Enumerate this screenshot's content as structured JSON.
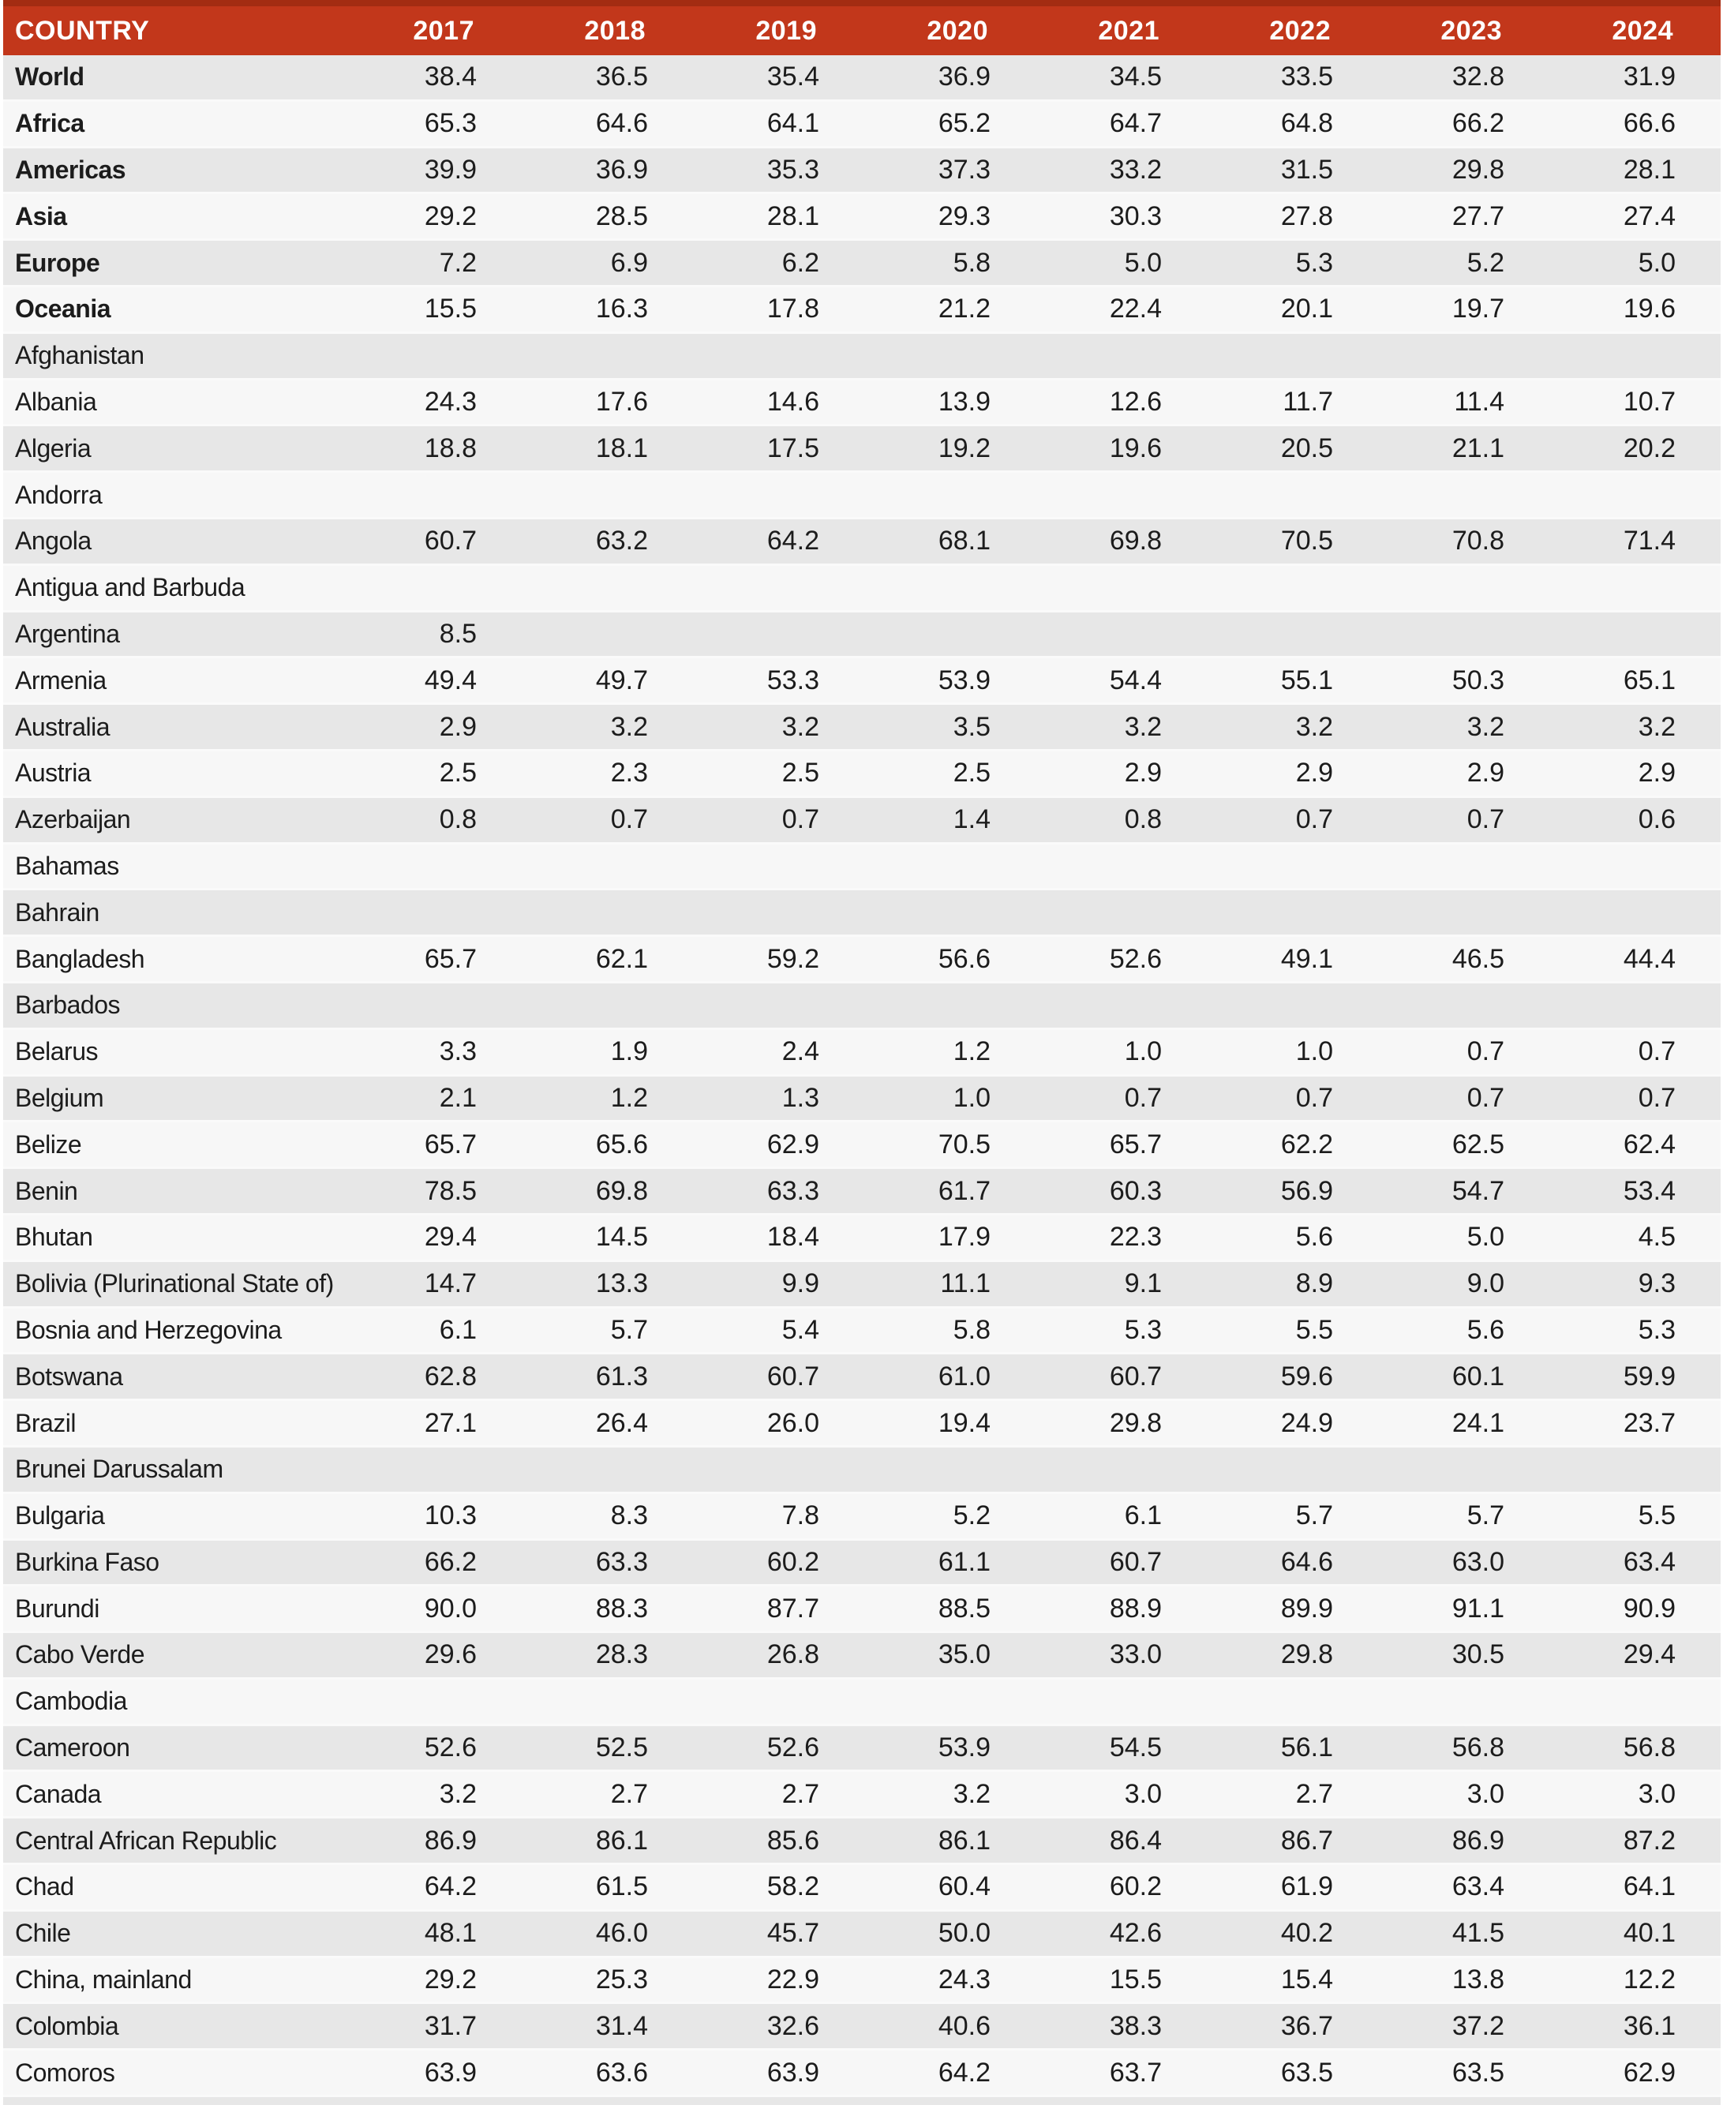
{
  "colors": {
    "header_bg": "#c2371b",
    "header_top": "#a32c12",
    "header_text": "#ffffff",
    "row_odd": "#e7e7e7",
    "row_even": "#f7f7f7",
    "row_separator": "#fafafa",
    "text": "#1c1c1c",
    "page_bg": "#ffffff"
  },
  "chart_data": {
    "type": "table",
    "title": "",
    "legend": [],
    "columns": [
      "COUNTRY",
      "2017",
      "2018",
      "2019",
      "2020",
      "2021",
      "2022",
      "2023",
      "2024"
    ],
    "rows": [
      {
        "label": "World",
        "bold": true,
        "values": [
          "38.4",
          "36.5",
          "35.4",
          "36.9",
          "34.5",
          "33.5",
          "32.8",
          "31.9"
        ]
      },
      {
        "label": "Africa",
        "bold": true,
        "values": [
          "65.3",
          "64.6",
          "64.1",
          "65.2",
          "64.7",
          "64.8",
          "66.2",
          "66.6"
        ]
      },
      {
        "label": "Americas",
        "bold": true,
        "values": [
          "39.9",
          "36.9",
          "35.3",
          "37.3",
          "33.2",
          "31.5",
          "29.8",
          "28.1"
        ]
      },
      {
        "label": "Asia",
        "bold": true,
        "values": [
          "29.2",
          "28.5",
          "28.1",
          "29.3",
          "30.3",
          "27.8",
          "27.7",
          "27.4"
        ]
      },
      {
        "label": "Europe",
        "bold": true,
        "values": [
          "7.2",
          "6.9",
          "6.2",
          "5.8",
          "5.0",
          "5.3",
          "5.2",
          "5.0"
        ]
      },
      {
        "label": "Oceania",
        "bold": true,
        "values": [
          "15.5",
          "16.3",
          "17.8",
          "21.2",
          "22.4",
          "20.1",
          "19.7",
          "19.6"
        ]
      },
      {
        "label": "Afghanistan",
        "bold": false,
        "values": [
          "",
          "",
          "",
          "",
          "",
          "",
          "",
          ""
        ]
      },
      {
        "label": "Albania",
        "bold": false,
        "values": [
          "24.3",
          "17.6",
          "14.6",
          "13.9",
          "12.6",
          "11.7",
          "11.4",
          "10.7"
        ]
      },
      {
        "label": "Algeria",
        "bold": false,
        "values": [
          "18.8",
          "18.1",
          "17.5",
          "19.2",
          "19.6",
          "20.5",
          "21.1",
          "20.2"
        ]
      },
      {
        "label": "Andorra",
        "bold": false,
        "values": [
          "",
          "",
          "",
          "",
          "",
          "",
          "",
          ""
        ]
      },
      {
        "label": "Angola",
        "bold": false,
        "values": [
          "60.7",
          "63.2",
          "64.2",
          "68.1",
          "69.8",
          "70.5",
          "70.8",
          "71.4"
        ]
      },
      {
        "label": "Antigua and Barbuda",
        "bold": false,
        "values": [
          "",
          "",
          "",
          "",
          "",
          "",
          "",
          ""
        ]
      },
      {
        "label": "Argentina",
        "bold": false,
        "values": [
          "8.5",
          "",
          "",
          "",
          "",
          "",
          "",
          ""
        ]
      },
      {
        "label": "Armenia",
        "bold": false,
        "values": [
          "49.4",
          "49.7",
          "53.3",
          "53.9",
          "54.4",
          "55.1",
          "50.3",
          "65.1"
        ]
      },
      {
        "label": "Australia",
        "bold": false,
        "values": [
          "2.9",
          "3.2",
          "3.2",
          "3.5",
          "3.2",
          "3.2",
          "3.2",
          "3.2"
        ]
      },
      {
        "label": "Austria",
        "bold": false,
        "values": [
          "2.5",
          "2.3",
          "2.5",
          "2.5",
          "2.9",
          "2.9",
          "2.9",
          "2.9"
        ]
      },
      {
        "label": "Azerbaijan",
        "bold": false,
        "values": [
          "0.8",
          "0.7",
          "0.7",
          "1.4",
          "0.8",
          "0.7",
          "0.7",
          "0.6"
        ]
      },
      {
        "label": "Bahamas",
        "bold": false,
        "values": [
          "",
          "",
          "",
          "",
          "",
          "",
          "",
          ""
        ]
      },
      {
        "label": "Bahrain",
        "bold": false,
        "values": [
          "",
          "",
          "",
          "",
          "",
          "",
          "",
          ""
        ]
      },
      {
        "label": "Bangladesh",
        "bold": false,
        "values": [
          "65.7",
          "62.1",
          "59.2",
          "56.6",
          "52.6",
          "49.1",
          "46.5",
          "44.4"
        ]
      },
      {
        "label": "Barbados",
        "bold": false,
        "values": [
          "",
          "",
          "",
          "",
          "",
          "",
          "",
          ""
        ]
      },
      {
        "label": "Belarus",
        "bold": false,
        "values": [
          "3.3",
          "1.9",
          "2.4",
          "1.2",
          "1.0",
          "1.0",
          "0.7",
          "0.7"
        ]
      },
      {
        "label": "Belgium",
        "bold": false,
        "values": [
          "2.1",
          "1.2",
          "1.3",
          "1.0",
          "0.7",
          "0.7",
          "0.7",
          "0.7"
        ]
      },
      {
        "label": "Belize",
        "bold": false,
        "values": [
          "65.7",
          "65.6",
          "62.9",
          "70.5",
          "65.7",
          "62.2",
          "62.5",
          "62.4"
        ]
      },
      {
        "label": "Benin",
        "bold": false,
        "values": [
          "78.5",
          "69.8",
          "63.3",
          "61.7",
          "60.3",
          "56.9",
          "54.7",
          "53.4"
        ]
      },
      {
        "label": "Bhutan",
        "bold": false,
        "values": [
          "29.4",
          "14.5",
          "18.4",
          "17.9",
          "22.3",
          "5.6",
          "5.0",
          "4.5"
        ]
      },
      {
        "label": "Bolivia (Plurinational State of)",
        "bold": false,
        "values": [
          "14.7",
          "13.3",
          "9.9",
          "11.1",
          "9.1",
          "8.9",
          "9.0",
          "9.3"
        ]
      },
      {
        "label": "Bosnia and Herzegovina",
        "bold": false,
        "values": [
          "6.1",
          "5.7",
          "5.4",
          "5.8",
          "5.3",
          "5.5",
          "5.6",
          "5.3"
        ]
      },
      {
        "label": "Botswana",
        "bold": false,
        "values": [
          "62.8",
          "61.3",
          "60.7",
          "61.0",
          "60.7",
          "59.6",
          "60.1",
          "59.9"
        ]
      },
      {
        "label": "Brazil",
        "bold": false,
        "values": [
          "27.1",
          "26.4",
          "26.0",
          "19.4",
          "29.8",
          "24.9",
          "24.1",
          "23.7"
        ]
      },
      {
        "label": "Brunei Darussalam",
        "bold": false,
        "values": [
          "",
          "",
          "",
          "",
          "",
          "",
          "",
          ""
        ]
      },
      {
        "label": "Bulgaria",
        "bold": false,
        "values": [
          "10.3",
          "8.3",
          "7.8",
          "5.2",
          "6.1",
          "5.7",
          "5.7",
          "5.5"
        ]
      },
      {
        "label": "Burkina Faso",
        "bold": false,
        "values": [
          "66.2",
          "63.3",
          "60.2",
          "61.1",
          "60.7",
          "64.6",
          "63.0",
          "63.4"
        ]
      },
      {
        "label": "Burundi",
        "bold": false,
        "values": [
          "90.0",
          "88.3",
          "87.7",
          "88.5",
          "88.9",
          "89.9",
          "91.1",
          "90.9"
        ]
      },
      {
        "label": "Cabo Verde",
        "bold": false,
        "values": [
          "29.6",
          "28.3",
          "26.8",
          "35.0",
          "33.0",
          "29.8",
          "30.5",
          "29.4"
        ]
      },
      {
        "label": "Cambodia",
        "bold": false,
        "values": [
          "",
          "",
          "",
          "",
          "",
          "",
          "",
          ""
        ]
      },
      {
        "label": "Cameroon",
        "bold": false,
        "values": [
          "52.6",
          "52.5",
          "52.6",
          "53.9",
          "54.5",
          "56.1",
          "56.8",
          "56.8"
        ]
      },
      {
        "label": "Canada",
        "bold": false,
        "values": [
          "3.2",
          "2.7",
          "2.7",
          "3.2",
          "3.0",
          "2.7",
          "3.0",
          "3.0"
        ]
      },
      {
        "label": "Central African Republic",
        "bold": false,
        "values": [
          "86.9",
          "86.1",
          "85.6",
          "86.1",
          "86.4",
          "86.7",
          "86.9",
          "87.2"
        ]
      },
      {
        "label": "Chad",
        "bold": false,
        "values": [
          "64.2",
          "61.5",
          "58.2",
          "60.4",
          "60.2",
          "61.9",
          "63.4",
          "64.1"
        ]
      },
      {
        "label": "Chile",
        "bold": false,
        "values": [
          "48.1",
          "46.0",
          "45.7",
          "50.0",
          "42.6",
          "40.2",
          "41.5",
          "40.1"
        ]
      },
      {
        "label": "China, mainland",
        "bold": false,
        "values": [
          "29.2",
          "25.3",
          "22.9",
          "24.3",
          "15.5",
          "15.4",
          "13.8",
          "12.2"
        ]
      },
      {
        "label": "Colombia",
        "bold": false,
        "values": [
          "31.7",
          "31.4",
          "32.6",
          "40.6",
          "38.3",
          "36.7",
          "37.2",
          "36.1"
        ]
      },
      {
        "label": "Comoros",
        "bold": false,
        "values": [
          "63.9",
          "63.6",
          "63.9",
          "64.2",
          "63.7",
          "63.5",
          "63.5",
          "62.9"
        ]
      }
    ]
  }
}
